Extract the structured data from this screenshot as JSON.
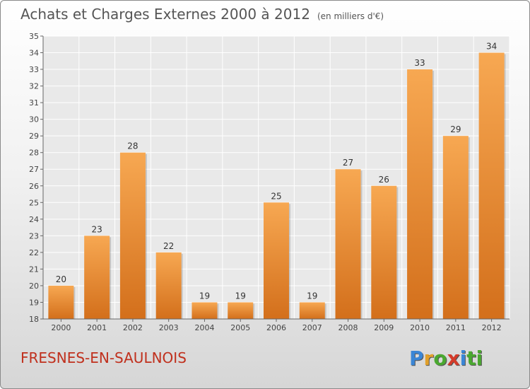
{
  "header": {
    "title": "Achats et Charges Externes 2000 à 2012",
    "unit": "(en milliers d'€)"
  },
  "footer": {
    "commune": "FRESNES-EN-SAULNOIS",
    "logo_letters": [
      "P",
      "r",
      "o",
      "x",
      "i",
      "ti"
    ]
  },
  "colors": {
    "bar_light": "#f7a852",
    "bar_dark": "#d36f1b",
    "commune_text": "#c0301d"
  },
  "chart_data": {
    "type": "bar",
    "title": "Achats et Charges Externes 2000 à 2012",
    "subtitle": "(en milliers d'€)",
    "categories": [
      "2000",
      "2001",
      "2002",
      "2003",
      "2004",
      "2005",
      "2006",
      "2007",
      "2008",
      "2009",
      "2010",
      "2011",
      "2012"
    ],
    "values": [
      20,
      23,
      28,
      22,
      19,
      19,
      25,
      19,
      27,
      26,
      33,
      29,
      34
    ],
    "ylim": [
      18,
      35
    ],
    "yticks": [
      18,
      19,
      20,
      21,
      22,
      23,
      24,
      25,
      26,
      27,
      28,
      29,
      30,
      31,
      32,
      33,
      34,
      35
    ],
    "grid": true,
    "data_labels": true
  }
}
